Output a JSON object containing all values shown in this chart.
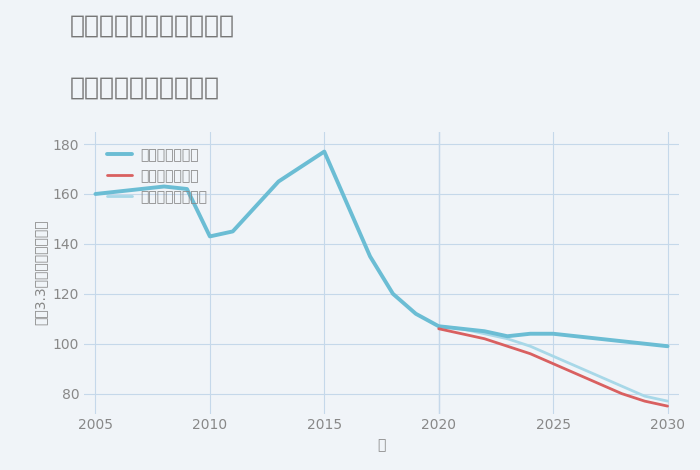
{
  "title_line1": "兵庫県西宮市小松南町の",
  "title_line2": "中古戸建ての価格推移",
  "xlabel": "年",
  "ylabel": "坪（3.3㎡）単価（万円）",
  "background_color": "#f0f4f8",
  "plot_bg_color": "#f0f4f8",
  "good_scenario": {
    "x": [
      2005,
      2007,
      2008,
      2009,
      2010,
      2011,
      2013,
      2015,
      2017,
      2018,
      2019,
      2020,
      2021,
      2022,
      2023,
      2024,
      2025,
      2026,
      2027,
      2028,
      2029,
      2030
    ],
    "y": [
      160,
      162,
      163,
      162,
      143,
      145,
      165,
      177,
      135,
      120,
      112,
      107,
      106,
      105,
      103,
      104,
      104,
      103,
      102,
      101,
      100,
      99
    ],
    "color": "#6bbdd4",
    "label": "グッドシナリオ",
    "linewidth": 2.8
  },
  "bad_scenario": {
    "x": [
      2020,
      2021,
      2022,
      2023,
      2024,
      2025,
      2026,
      2027,
      2028,
      2029,
      2030
    ],
    "y": [
      106,
      104,
      102,
      99,
      96,
      92,
      88,
      84,
      80,
      77,
      75
    ],
    "color": "#d96060",
    "label": "バッドシナリオ",
    "linewidth": 2.0
  },
  "normal_scenario": {
    "x": [
      2020,
      2021,
      2022,
      2023,
      2024,
      2025,
      2026,
      2027,
      2028,
      2029,
      2030
    ],
    "y": [
      107,
      106,
      104,
      102,
      99,
      95,
      91,
      87,
      83,
      79,
      77
    ],
    "color": "#a8d8e8",
    "label": "ノーマルシナリオ",
    "linewidth": 2.0
  },
  "ylim": [
    72,
    185
  ],
  "xlim": [
    2004.5,
    2030.5
  ],
  "yticks": [
    80,
    100,
    120,
    140,
    160,
    180
  ],
  "xticks": [
    2005,
    2010,
    2015,
    2020,
    2025,
    2030
  ],
  "grid_color": "#c5d8ea",
  "divider_x": 2020,
  "title_color": "#777777",
  "tick_color": "#888888",
  "title_fontsize": 18,
  "legend_fontsize": 10,
  "axis_label_fontsize": 10
}
